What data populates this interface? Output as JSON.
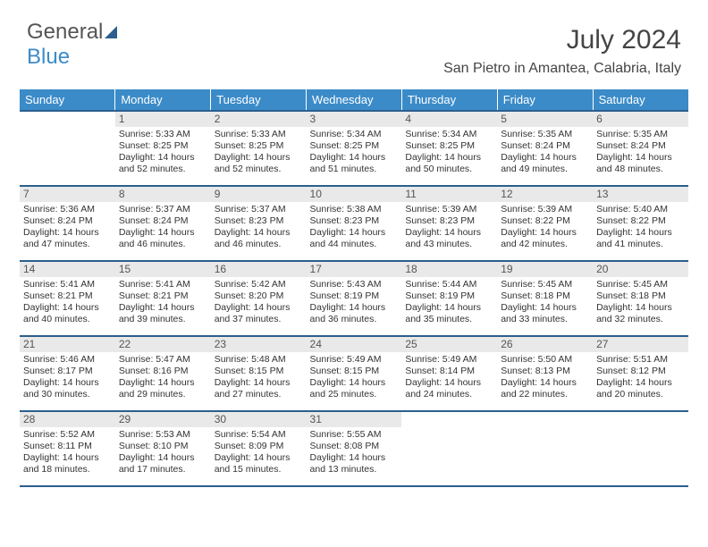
{
  "logo": {
    "text1": "General",
    "text2": "Blue"
  },
  "title": "July 2024",
  "subtitle": "San Pietro in Amantea, Calabria, Italy",
  "colors": {
    "header_bg": "#3b8bc8",
    "header_border": "#2c5f8d",
    "daynum_bg": "#e9e9e9",
    "text": "#333333",
    "page_bg": "#ffffff"
  },
  "day_headers": [
    "Sunday",
    "Monday",
    "Tuesday",
    "Wednesday",
    "Thursday",
    "Friday",
    "Saturday"
  ],
  "start_offset": 1,
  "days": [
    {
      "n": 1,
      "sr": "5:33 AM",
      "ss": "8:25 PM",
      "dl": "14 hours and 52 minutes."
    },
    {
      "n": 2,
      "sr": "5:33 AM",
      "ss": "8:25 PM",
      "dl": "14 hours and 52 minutes."
    },
    {
      "n": 3,
      "sr": "5:34 AM",
      "ss": "8:25 PM",
      "dl": "14 hours and 51 minutes."
    },
    {
      "n": 4,
      "sr": "5:34 AM",
      "ss": "8:25 PM",
      "dl": "14 hours and 50 minutes."
    },
    {
      "n": 5,
      "sr": "5:35 AM",
      "ss": "8:24 PM",
      "dl": "14 hours and 49 minutes."
    },
    {
      "n": 6,
      "sr": "5:35 AM",
      "ss": "8:24 PM",
      "dl": "14 hours and 48 minutes."
    },
    {
      "n": 7,
      "sr": "5:36 AM",
      "ss": "8:24 PM",
      "dl": "14 hours and 47 minutes."
    },
    {
      "n": 8,
      "sr": "5:37 AM",
      "ss": "8:24 PM",
      "dl": "14 hours and 46 minutes."
    },
    {
      "n": 9,
      "sr": "5:37 AM",
      "ss": "8:23 PM",
      "dl": "14 hours and 46 minutes."
    },
    {
      "n": 10,
      "sr": "5:38 AM",
      "ss": "8:23 PM",
      "dl": "14 hours and 44 minutes."
    },
    {
      "n": 11,
      "sr": "5:39 AM",
      "ss": "8:23 PM",
      "dl": "14 hours and 43 minutes."
    },
    {
      "n": 12,
      "sr": "5:39 AM",
      "ss": "8:22 PM",
      "dl": "14 hours and 42 minutes."
    },
    {
      "n": 13,
      "sr": "5:40 AM",
      "ss": "8:22 PM",
      "dl": "14 hours and 41 minutes."
    },
    {
      "n": 14,
      "sr": "5:41 AM",
      "ss": "8:21 PM",
      "dl": "14 hours and 40 minutes."
    },
    {
      "n": 15,
      "sr": "5:41 AM",
      "ss": "8:21 PM",
      "dl": "14 hours and 39 minutes."
    },
    {
      "n": 16,
      "sr": "5:42 AM",
      "ss": "8:20 PM",
      "dl": "14 hours and 37 minutes."
    },
    {
      "n": 17,
      "sr": "5:43 AM",
      "ss": "8:19 PM",
      "dl": "14 hours and 36 minutes."
    },
    {
      "n": 18,
      "sr": "5:44 AM",
      "ss": "8:19 PM",
      "dl": "14 hours and 35 minutes."
    },
    {
      "n": 19,
      "sr": "5:45 AM",
      "ss": "8:18 PM",
      "dl": "14 hours and 33 minutes."
    },
    {
      "n": 20,
      "sr": "5:45 AM",
      "ss": "8:18 PM",
      "dl": "14 hours and 32 minutes."
    },
    {
      "n": 21,
      "sr": "5:46 AM",
      "ss": "8:17 PM",
      "dl": "14 hours and 30 minutes."
    },
    {
      "n": 22,
      "sr": "5:47 AM",
      "ss": "8:16 PM",
      "dl": "14 hours and 29 minutes."
    },
    {
      "n": 23,
      "sr": "5:48 AM",
      "ss": "8:15 PM",
      "dl": "14 hours and 27 minutes."
    },
    {
      "n": 24,
      "sr": "5:49 AM",
      "ss": "8:15 PM",
      "dl": "14 hours and 25 minutes."
    },
    {
      "n": 25,
      "sr": "5:49 AM",
      "ss": "8:14 PM",
      "dl": "14 hours and 24 minutes."
    },
    {
      "n": 26,
      "sr": "5:50 AM",
      "ss": "8:13 PM",
      "dl": "14 hours and 22 minutes."
    },
    {
      "n": 27,
      "sr": "5:51 AM",
      "ss": "8:12 PM",
      "dl": "14 hours and 20 minutes."
    },
    {
      "n": 28,
      "sr": "5:52 AM",
      "ss": "8:11 PM",
      "dl": "14 hours and 18 minutes."
    },
    {
      "n": 29,
      "sr": "5:53 AM",
      "ss": "8:10 PM",
      "dl": "14 hours and 17 minutes."
    },
    {
      "n": 30,
      "sr": "5:54 AM",
      "ss": "8:09 PM",
      "dl": "14 hours and 15 minutes."
    },
    {
      "n": 31,
      "sr": "5:55 AM",
      "ss": "8:08 PM",
      "dl": "14 hours and 13 minutes."
    }
  ],
  "labels": {
    "sunrise": "Sunrise:",
    "sunset": "Sunset:",
    "daylight": "Daylight:"
  }
}
